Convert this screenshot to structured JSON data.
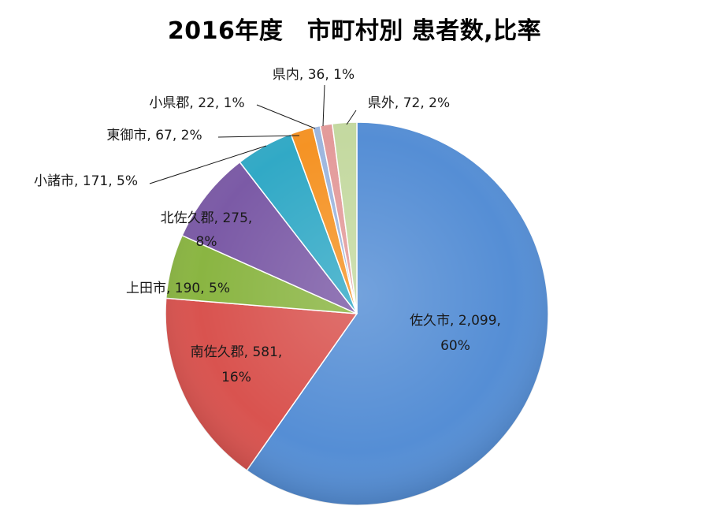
{
  "chart_data": {
    "type": "pie",
    "title": "2016年度　市町村別 患者数,比率",
    "slices": [
      {
        "name": "佐久市",
        "value": 2099,
        "percent": "60%",
        "value_label": "2,099",
        "color": "#558ED5",
        "label": "佐久市, 2,099, 60%"
      },
      {
        "name": "南佐久郡",
        "value": 581,
        "percent": "16%",
        "value_label": "581",
        "color": "#D9534F",
        "label": "南佐久郡, 581, 16%"
      },
      {
        "name": "上田市",
        "value": 190,
        "percent": "5%",
        "value_label": "190",
        "color": "#8AB542",
        "label": "上田市, 190, 5%"
      },
      {
        "name": "北佐久郡",
        "value": 275,
        "percent": "8%",
        "value_label": "275",
        "color": "#7B5AA6",
        "label": "北佐久郡, 275, 8%"
      },
      {
        "name": "小諸市",
        "value": 171,
        "percent": "5%",
        "value_label": "171",
        "color": "#31A9C6",
        "label": "小諸市, 171, 5%"
      },
      {
        "name": "東御市",
        "value": 67,
        "percent": "2%",
        "value_label": "67",
        "color": "#F59324",
        "label": "東御市, 67, 2%"
      },
      {
        "name": "小県郡",
        "value": 22,
        "percent": "1%",
        "value_label": "22",
        "color": "#9DB6DE",
        "label": "小県郡, 22, 1%"
      },
      {
        "name": "県内",
        "value": 36,
        "percent": "1%",
        "value_label": "36",
        "color": "#E39A9A",
        "label": "県内, 36, 1%"
      },
      {
        "name": "県外",
        "value": 72,
        "percent": "2%",
        "value_label": "72",
        "color": "#C4D9A0",
        "label": "県外, 72, 2%"
      }
    ]
  }
}
